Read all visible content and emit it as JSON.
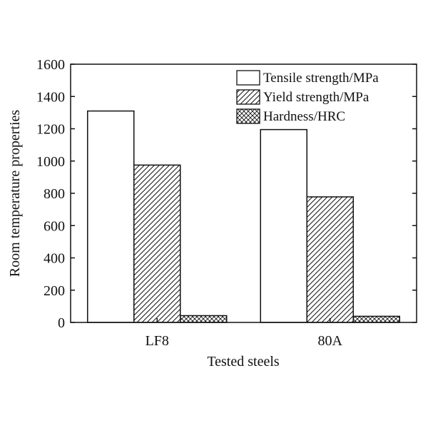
{
  "chart_data": {
    "type": "bar",
    "categories": [
      "LF8",
      "80A"
    ],
    "series": [
      {
        "name": "Tensile strength/MPa",
        "values": [
          1310,
          1195
        ],
        "pattern": "empty"
      },
      {
        "name": "Yield strength/MPa",
        "values": [
          975,
          778
        ],
        "pattern": "diagonal-hatch"
      },
      {
        "name": "Hardness/HRC",
        "values": [
          42,
          38
        ],
        "pattern": "cross-hatch"
      }
    ],
    "xlabel": "Tested steels",
    "ylabel": "Room temperature properties",
    "ylim": [
      0,
      1600
    ],
    "yticks": [
      0,
      200,
      400,
      600,
      800,
      1000,
      1200,
      1400,
      1600
    ],
    "legend_position": "top-right",
    "grid": false,
    "colors": {
      "line": "#111111",
      "fill": "#ffffff"
    }
  }
}
